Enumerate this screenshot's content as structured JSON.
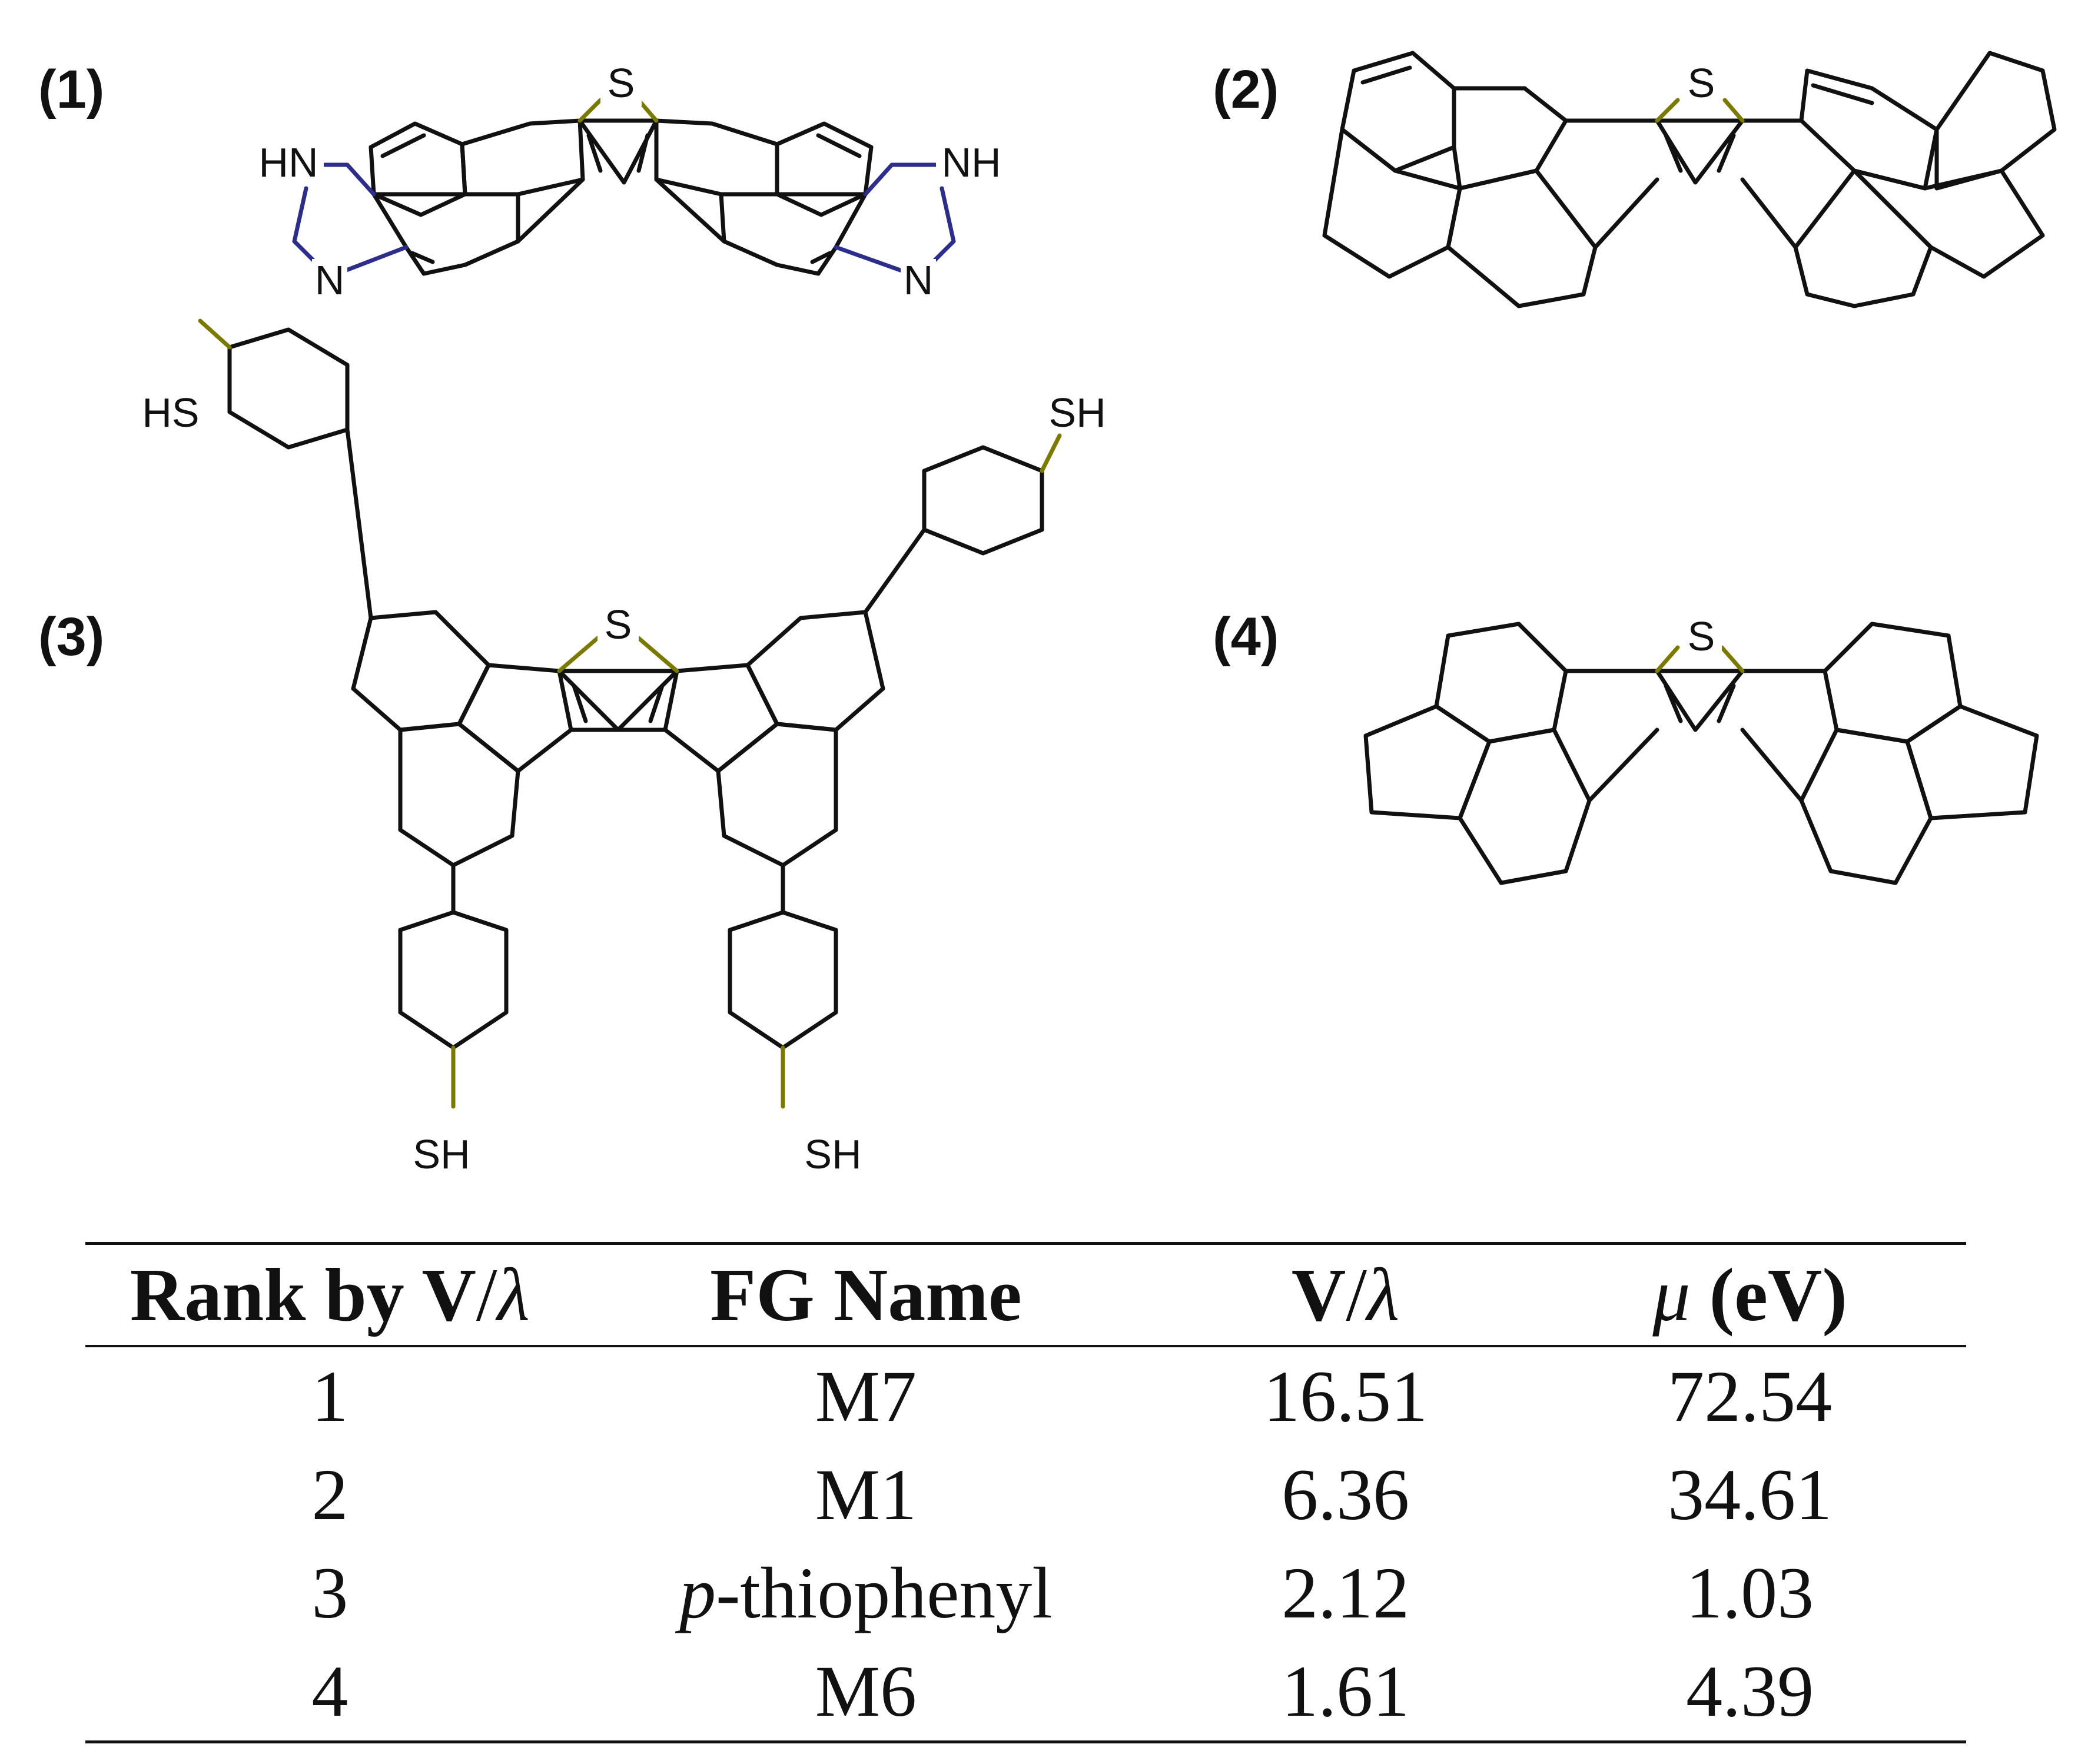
{
  "labels": {
    "m1": "(1)",
    "m2": "(2)",
    "m3": "(3)",
    "m4": "(4)"
  },
  "atoms": {
    "m1": {
      "s": "S",
      "nh_left": "HN",
      "n_left": "N",
      "nh_right": "NH",
      "n_right": "N"
    },
    "m2": {
      "s": "S"
    },
    "m3": {
      "s": "S",
      "sh_tl": "HS",
      "sh_tr": "SH",
      "sh_bl": "SH",
      "sh_br": "SH"
    },
    "m4": {
      "s": "S"
    }
  },
  "colors": {
    "bond": "#111111",
    "sulfur": "#7a7a00",
    "nitrogen": "#2d2d8a"
  },
  "table": {
    "headers": {
      "rank_word": "Rank by ",
      "rank_v": "V",
      "rank_slash": "/",
      "rank_lambda": "λ",
      "fg": "FG Name",
      "v": "V",
      "v_slash": "/",
      "v_lambda": "λ",
      "mu_symbol": "μ",
      "mu_unit": " (eV)"
    },
    "rows": [
      {
        "rank": "1",
        "fg_prefix": "",
        "fg": "M7",
        "v_lambda": "16.51",
        "mu": "72.54"
      },
      {
        "rank": "2",
        "fg_prefix": "",
        "fg": "M1",
        "v_lambda": "6.36",
        "mu": "34.61"
      },
      {
        "rank": "3",
        "fg_prefix": "p",
        "fg": "-thiophenyl",
        "v_lambda": "2.12",
        "mu": "1.03"
      },
      {
        "rank": "4",
        "fg_prefix": "",
        "fg": "M6",
        "v_lambda": "1.61",
        "mu": "4.39"
      }
    ]
  }
}
